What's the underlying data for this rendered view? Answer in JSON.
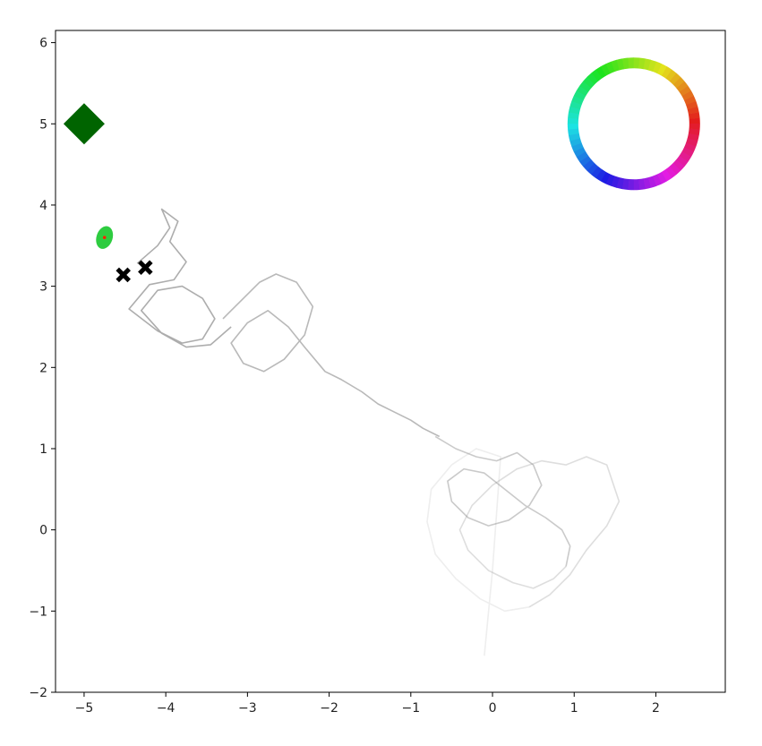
{
  "chart_data": {
    "type": "scatter",
    "title": "",
    "xlabel": "",
    "ylabel": "",
    "xlim": [
      -5.35,
      2.85
    ],
    "ylim": [
      -2.0,
      6.15
    ],
    "xticks": [
      -5,
      -4,
      -3,
      -2,
      -1,
      0,
      1,
      2
    ],
    "yticks": [
      -2,
      -1,
      0,
      1,
      2,
      3,
      4,
      5,
      6
    ],
    "xtick_labels": [
      "−5",
      "−4",
      "−3",
      "−2",
      "−1",
      "0",
      "1",
      "2"
    ],
    "ytick_labels": [
      "−2",
      "−1",
      "0",
      "1",
      "2",
      "3",
      "4",
      "5",
      "6"
    ],
    "grid": false,
    "legend": "none",
    "markers": [
      {
        "name": "green-diamond",
        "shape": "diamond",
        "color": "#006400",
        "x": -5.0,
        "y": 5.0
      },
      {
        "name": "green-ellipse",
        "shape": "ellipse",
        "color": "#2ecc40",
        "x": -4.75,
        "y": 3.6
      },
      {
        "name": "red-dot",
        "shape": "dot",
        "color": "#ff2200",
        "x": -4.75,
        "y": 3.6
      },
      {
        "name": "x-marker-1",
        "shape": "x",
        "color": "#000000",
        "x": -4.52,
        "y": 3.14
      },
      {
        "name": "x-marker-2",
        "shape": "x",
        "color": "#000000",
        "x": -4.25,
        "y": 3.23
      }
    ],
    "color_wheel": {
      "center": [
        1.73,
        5.0
      ],
      "position": "top-right"
    },
    "trajectories": [
      {
        "name": "trajectory-segment-1",
        "opacity": 0.7,
        "x": [
          -4.35,
          -4.1,
          -3.95,
          -4.05,
          -3.85,
          -3.95,
          -3.75,
          -3.9,
          -4.2,
          -4.45,
          -4.1,
          -3.8,
          -3.55,
          -3.4,
          -3.55,
          -3.8,
          -4.1,
          -4.3,
          -4.05,
          -3.75,
          -3.45,
          -3.2
        ],
        "y": [
          3.28,
          3.5,
          3.72,
          3.95,
          3.8,
          3.55,
          3.3,
          3.08,
          3.02,
          2.72,
          2.45,
          2.3,
          2.35,
          2.6,
          2.85,
          3.0,
          2.95,
          2.7,
          2.42,
          2.25,
          2.28,
          2.5
        ]
      },
      {
        "name": "trajectory-segment-2",
        "opacity": 0.6,
        "x": [
          -3.3,
          -3.05,
          -2.85,
          -2.65,
          -2.4,
          -2.2,
          -2.3,
          -2.55,
          -2.8,
          -3.05,
          -3.2,
          -3.0,
          -2.75,
          -2.5,
          -2.3,
          -2.05,
          -1.85,
          -1.6,
          -1.4,
          -1.2,
          -1.0,
          -0.85,
          -0.65
        ],
        "y": [
          2.6,
          2.85,
          3.05,
          3.15,
          3.05,
          2.75,
          2.4,
          2.1,
          1.95,
          2.05,
          2.3,
          2.55,
          2.7,
          2.5,
          2.25,
          1.95,
          1.85,
          1.7,
          1.55,
          1.45,
          1.35,
          1.25,
          1.15
        ]
      },
      {
        "name": "trajectory-segment-3",
        "opacity": 0.45,
        "x": [
          -0.7,
          -0.45,
          -0.2,
          0.05,
          0.3,
          0.5,
          0.6,
          0.45,
          0.2,
          -0.05,
          -0.3,
          -0.5,
          -0.55,
          -0.35,
          -0.1,
          0.15,
          0.4,
          0.65,
          0.85,
          0.95,
          0.9
        ],
        "y": [
          1.15,
          1.0,
          0.9,
          0.85,
          0.95,
          0.8,
          0.55,
          0.3,
          0.12,
          0.05,
          0.15,
          0.35,
          0.6,
          0.75,
          0.7,
          0.5,
          0.3,
          0.15,
          0.0,
          -0.2,
          -0.45
        ]
      },
      {
        "name": "trajectory-segment-4",
        "opacity": 0.28,
        "x": [
          0.9,
          0.75,
          0.5,
          0.25,
          -0.05,
          -0.3,
          -0.4,
          -0.25,
          0.0,
          0.3,
          0.6,
          0.9,
          1.15,
          1.4,
          1.55,
          1.4,
          1.15,
          0.95,
          0.7,
          0.45
        ],
        "y": [
          -0.45,
          -0.6,
          -0.72,
          -0.65,
          -0.5,
          -0.25,
          0.0,
          0.3,
          0.55,
          0.75,
          0.85,
          0.8,
          0.9,
          0.8,
          0.35,
          0.05,
          -0.25,
          -0.55,
          -0.8,
          -0.95
        ]
      },
      {
        "name": "trajectory-segment-5",
        "opacity": 0.15,
        "x": [
          0.45,
          0.15,
          -0.15,
          -0.45,
          -0.7,
          -0.8,
          -0.75,
          -0.5,
          -0.2,
          0.1,
          0.0,
          -0.1
        ],
        "y": [
          -0.95,
          -1.0,
          -0.85,
          -0.6,
          -0.3,
          0.1,
          0.5,
          0.8,
          1.0,
          0.9,
          -0.5,
          -1.55
        ]
      }
    ]
  }
}
